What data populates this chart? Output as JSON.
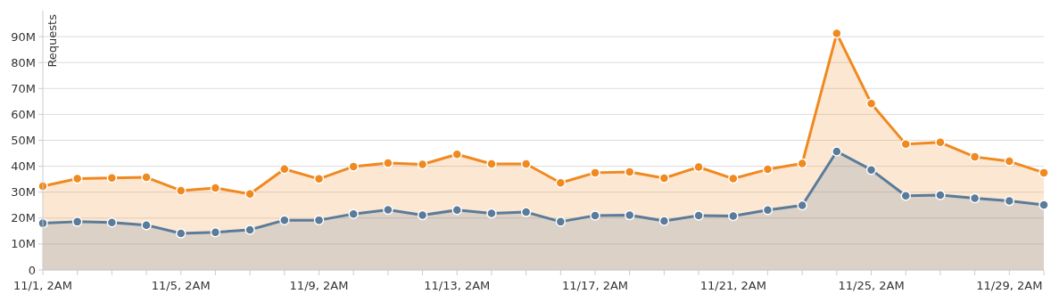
{
  "chart_data": {
    "type": "area",
    "ylabel": "Requests",
    "categories": [
      "11/1, 2AM",
      null,
      null,
      null,
      "11/5, 2AM",
      null,
      null,
      null,
      "11/9, 2AM",
      null,
      null,
      null,
      "11/13, 2AM",
      null,
      null,
      null,
      "11/17, 2AM",
      null,
      null,
      null,
      "11/21, 2AM",
      null,
      null,
      null,
      "11/25, 2AM",
      null,
      null,
      null,
      "11/29, 2AM",
      null
    ],
    "series": [
      {
        "color": "#f0891f",
        "values": [
          32.3,
          35.2,
          35.5,
          35.7,
          30.6,
          31.6,
          29.3,
          38.9,
          35.1,
          39.9,
          41.2,
          40.7,
          44.6,
          40.9,
          40.9,
          33.6,
          37.5,
          37.8,
          35.4,
          39.7,
          35.2,
          38.8,
          41.1,
          91.2,
          64.2,
          48.5,
          49.2,
          43.6,
          41.9,
          37.5
        ]
      },
      {
        "color": "#5a7b9a",
        "values": [
          18.0,
          18.6,
          18.3,
          17.3,
          14.1,
          14.5,
          15.5,
          19.2,
          19.2,
          21.6,
          23.2,
          21.1,
          23.1,
          21.8,
          22.3,
          18.6,
          21.0,
          21.1,
          18.9,
          21.0,
          20.8,
          23.1,
          24.9,
          45.7,
          38.6,
          28.6,
          28.9,
          27.7,
          26.6,
          25.1
        ]
      }
    ],
    "ylim": [
      0,
      100
    ],
    "yticks": [
      0,
      {
        "value": 10,
        "label": "10M"
      },
      {
        "value": 20,
        "label": "20M"
      },
      {
        "value": 30,
        "label": "30M"
      },
      {
        "value": 40,
        "label": "40M"
      },
      {
        "value": 50,
        "label": "50M"
      },
      {
        "value": 60,
        "label": "60M"
      },
      {
        "value": 70,
        "label": "70M"
      },
      {
        "value": 80,
        "label": "80M"
      },
      {
        "value": 90,
        "label": "90M"
      }
    ],
    "grid": "y",
    "marker": "circle",
    "line_style": "solid"
  }
}
